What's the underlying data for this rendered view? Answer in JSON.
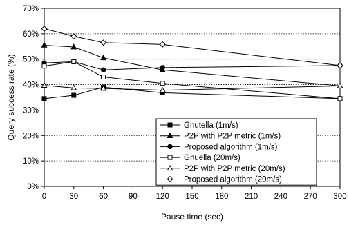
{
  "chart_data": {
    "type": "line",
    "title": "",
    "xlabel": "Pause time (sec)",
    "ylabel": "Query success rate (%)",
    "x": [
      0,
      30,
      60,
      120,
      300
    ],
    "x_ticks": [
      "0",
      "30",
      "60",
      "90",
      "120",
      "150",
      "180",
      "210",
      "240",
      "270",
      "300"
    ],
    "y_ticks": [
      "0%",
      "10%",
      "20%",
      "30%",
      "40%",
      "50%",
      "60%",
      "70%"
    ],
    "xlim": [
      0,
      300
    ],
    "ylim": [
      0,
      70
    ],
    "grid": "horizontal dotted",
    "legend_position": "bottom-right",
    "series": [
      {
        "name": "Gnutella (1m/s)",
        "marker": "square-filled",
        "values": [
          34.5,
          35.8,
          39.0,
          36.8,
          34.5
        ]
      },
      {
        "name": "P2P with P2P metric (1m/s)",
        "marker": "triangle-filled",
        "values": [
          55.5,
          54.8,
          50.5,
          45.8,
          39.5
        ]
      },
      {
        "name": "Proposed algorithm (1m/s)",
        "marker": "circle-filled",
        "values": [
          48.5,
          49.0,
          45.8,
          46.7,
          47.5
        ]
      },
      {
        "name": "Gnuella (20m/s)",
        "marker": "square-open",
        "values": [
          47.3,
          49.0,
          43.0,
          40.5,
          34.5
        ]
      },
      {
        "name": "P2P with P2P metric (20m/s)",
        "marker": "triangle-open",
        "values": [
          39.7,
          38.7,
          38.5,
          37.8,
          39.5
        ]
      },
      {
        "name": "Proposed algorithm (20m/s)",
        "marker": "diamond-open",
        "values": [
          62.0,
          59.0,
          56.5,
          55.8,
          47.5
        ]
      }
    ]
  }
}
